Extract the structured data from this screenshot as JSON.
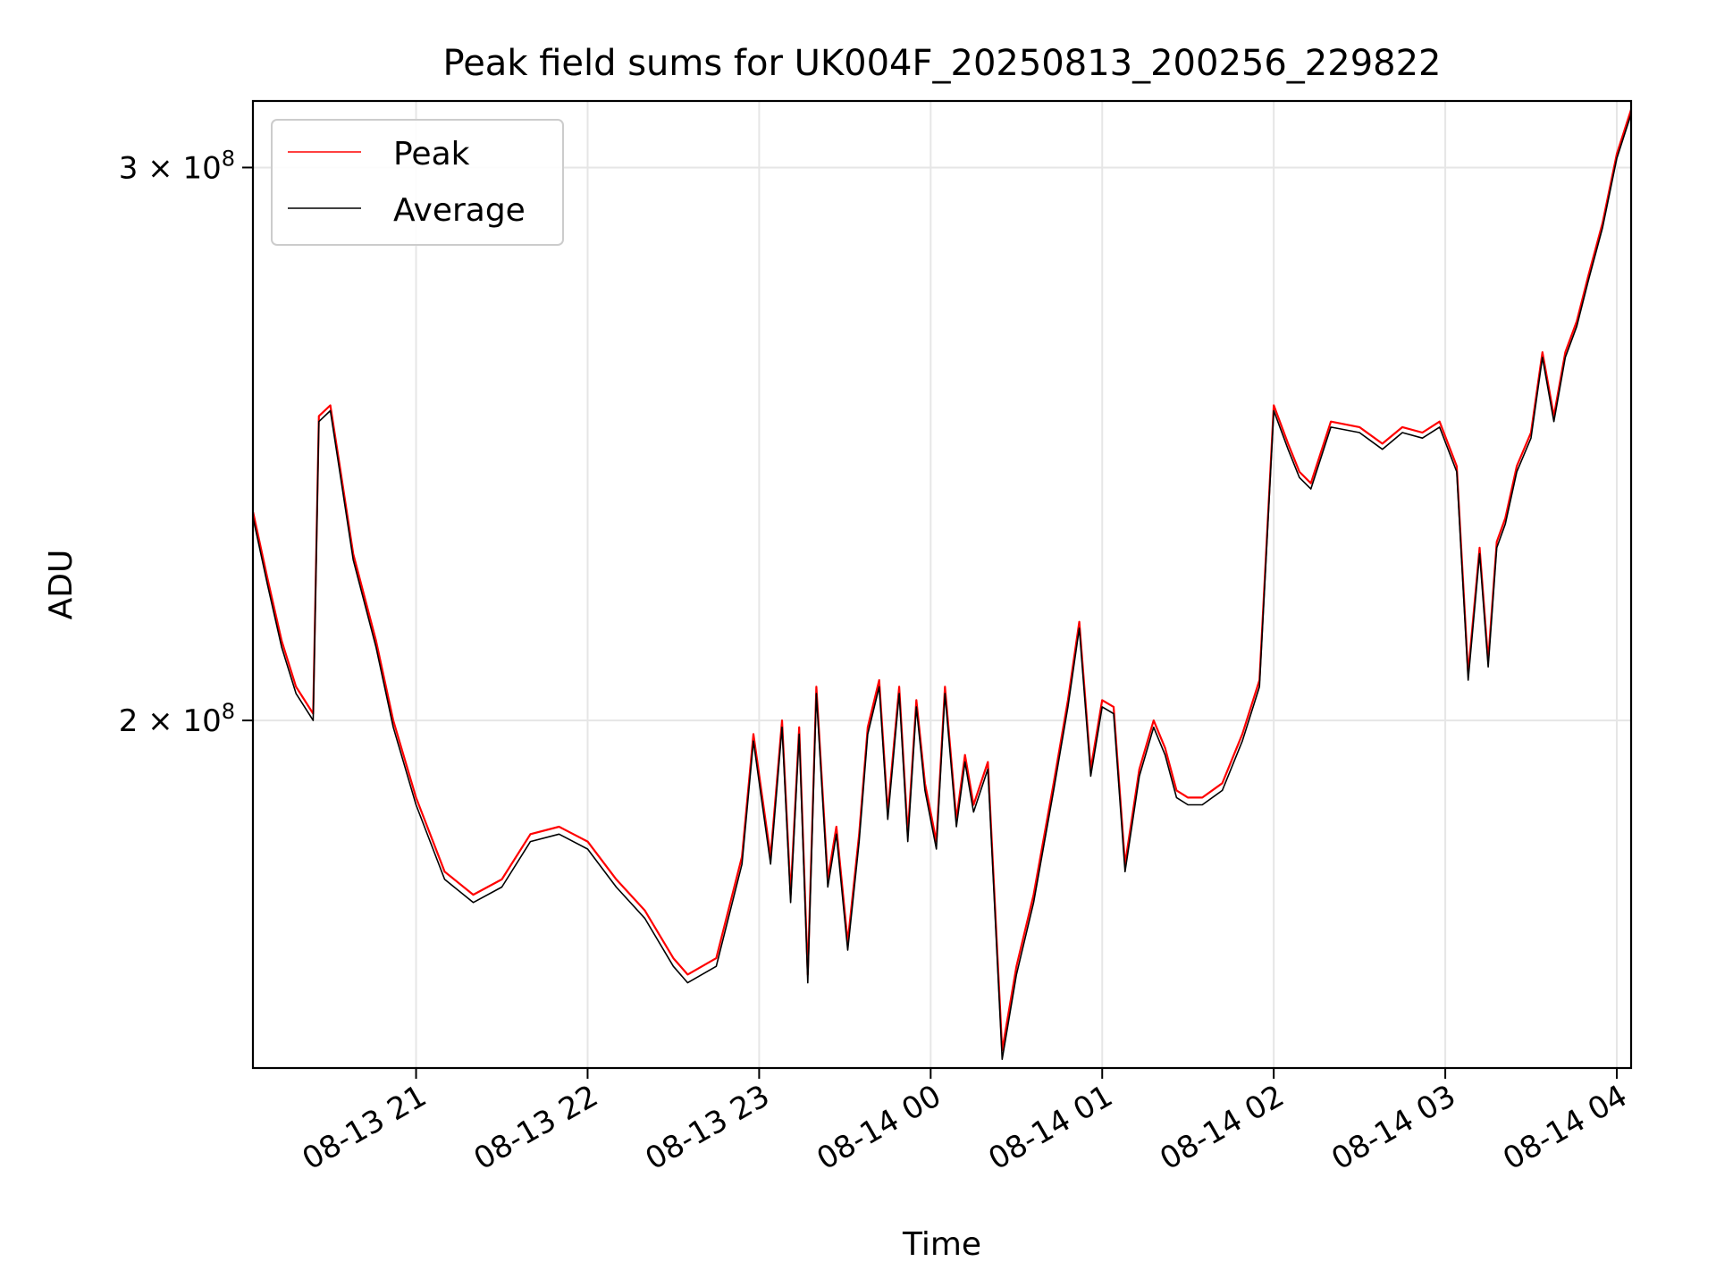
{
  "chart_data": {
    "type": "line",
    "title": "Peak field sums for UK004F_20250813_200256_229822",
    "xlabel": "Time",
    "ylabel": "ADU",
    "xlim": [
      "2025-08-13 20:02:56",
      "2025-08-14 04:05:00"
    ],
    "ylim": [
      155000000,
      315000000
    ],
    "yscale": "log",
    "grid": true,
    "legend_position": "top-left",
    "x_ticks": [
      {
        "value": "2025-08-13 21:00",
        "label": "08-13 21"
      },
      {
        "value": "2025-08-13 22:00",
        "label": "08-13 22"
      },
      {
        "value": "2025-08-13 23:00",
        "label": "08-13 23"
      },
      {
        "value": "2025-08-14 00:00",
        "label": "08-14 00"
      },
      {
        "value": "2025-08-14 01:00",
        "label": "08-14 01"
      },
      {
        "value": "2025-08-14 02:00",
        "label": "08-14 02"
      },
      {
        "value": "2025-08-14 03:00",
        "label": "08-14 03"
      },
      {
        "value": "2025-08-14 04:00",
        "label": "08-14 04"
      }
    ],
    "y_ticks": [
      {
        "value": 200000000,
        "mantissa": "2",
        "base": "10",
        "exponent": "8"
      },
      {
        "value": 300000000,
        "mantissa": "3",
        "base": "10",
        "exponent": "8"
      }
    ],
    "x": [
      "2025-08-13 20:03",
      "2025-08-13 20:08",
      "2025-08-13 20:13",
      "2025-08-13 20:18",
      "2025-08-13 20:24",
      "2025-08-13 20:26",
      "2025-08-13 20:30",
      "2025-08-13 20:33",
      "2025-08-13 20:38",
      "2025-08-13 20:46",
      "2025-08-13 20:52",
      "2025-08-13 21:00",
      "2025-08-13 21:10",
      "2025-08-13 21:20",
      "2025-08-13 21:30",
      "2025-08-13 21:40",
      "2025-08-13 21:50",
      "2025-08-13 22:00",
      "2025-08-13 22:10",
      "2025-08-13 22:20",
      "2025-08-13 22:30",
      "2025-08-13 22:35",
      "2025-08-13 22:45",
      "2025-08-13 22:54",
      "2025-08-13 22:58",
      "2025-08-13 23:04",
      "2025-08-13 23:08",
      "2025-08-13 23:11",
      "2025-08-13 23:14",
      "2025-08-13 23:17",
      "2025-08-13 23:20",
      "2025-08-13 23:24",
      "2025-08-13 23:27",
      "2025-08-13 23:31",
      "2025-08-13 23:35",
      "2025-08-13 23:38",
      "2025-08-13 23:42",
      "2025-08-13 23:45",
      "2025-08-13 23:49",
      "2025-08-13 23:52",
      "2025-08-13 23:55",
      "2025-08-13 23:58",
      "2025-08-14 00:02",
      "2025-08-14 00:05",
      "2025-08-14 00:09",
      "2025-08-14 00:12",
      "2025-08-14 00:15",
      "2025-08-14 00:20",
      "2025-08-14 00:25",
      "2025-08-14 00:30",
      "2025-08-14 00:36",
      "2025-08-14 00:43",
      "2025-08-14 00:48",
      "2025-08-14 00:52",
      "2025-08-14 00:56",
      "2025-08-14 01:00",
      "2025-08-14 01:04",
      "2025-08-14 01:08",
      "2025-08-14 01:13",
      "2025-08-14 01:18",
      "2025-08-14 01:22",
      "2025-08-14 01:26",
      "2025-08-14 01:30",
      "2025-08-14 01:35",
      "2025-08-14 01:42",
      "2025-08-14 01:49",
      "2025-08-14 01:55",
      "2025-08-14 02:00",
      "2025-08-14 02:05",
      "2025-08-14 02:09",
      "2025-08-14 02:13",
      "2025-08-14 02:20",
      "2025-08-14 02:30",
      "2025-08-14 02:38",
      "2025-08-14 02:45",
      "2025-08-14 02:52",
      "2025-08-14 02:58",
      "2025-08-14 03:04",
      "2025-08-14 03:08",
      "2025-08-14 03:12",
      "2025-08-14 03:15",
      "2025-08-14 03:18",
      "2025-08-14 03:21",
      "2025-08-14 03:25",
      "2025-08-14 03:30",
      "2025-08-14 03:34",
      "2025-08-14 03:38",
      "2025-08-14 03:42",
      "2025-08-14 03:46",
      "2025-08-14 03:50",
      "2025-08-14 03:55",
      "2025-08-14 04:00",
      "2025-08-14 04:05"
    ],
    "series": [
      {
        "name": "Peak",
        "color": "#ff0000",
        "values": [
          233000000,
          222000000,
          212000000,
          205000000,
          201000000,
          250000000,
          252000000,
          242000000,
          226000000,
          212000000,
          200000000,
          189000000,
          179000000,
          176000000,
          178000000,
          184000000,
          185000000,
          183000000,
          178000000,
          174000000,
          168000000,
          166000000,
          168000000,
          181000000,
          198000000,
          181000000,
          200000000,
          176000000,
          199000000,
          166000000,
          205000000,
          178000000,
          185000000,
          170000000,
          184000000,
          199000000,
          206000000,
          187000000,
          205000000,
          184000000,
          203000000,
          191000000,
          183000000,
          205000000,
          186000000,
          195000000,
          188000000,
          194000000,
          157000000,
          167000000,
          176000000,
          191000000,
          203000000,
          215000000,
          193000000,
          203000000,
          202000000,
          180000000,
          193000000,
          200000000,
          196000000,
          190000000,
          189000000,
          189000000,
          191000000,
          198000000,
          206000000,
          252000000,
          245000000,
          240000000,
          238000000,
          249000000,
          248000000,
          245000000,
          248000000,
          247000000,
          249000000,
          241000000,
          207000000,
          227000000,
          209000000,
          228000000,
          232000000,
          241000000,
          247000000,
          262000000,
          250000000,
          262000000,
          268000000,
          277000000,
          288000000,
          303000000,
          313000000
        ]
      },
      {
        "name": "Average",
        "color": "#000000",
        "values": [
          232000000,
          221000000,
          211000000,
          204000000,
          200000000,
          249000000,
          251000000,
          241000000,
          225000000,
          211000000,
          199000000,
          188000000,
          178000000,
          175000000,
          177000000,
          183000000,
          184000000,
          182000000,
          177000000,
          173000000,
          167000000,
          165000000,
          167000000,
          180000000,
          197000000,
          180000000,
          199000000,
          175000000,
          198000000,
          165000000,
          204000000,
          177000000,
          184000000,
          169000000,
          183000000,
          198000000,
          205000000,
          186000000,
          204000000,
          183000000,
          202000000,
          190000000,
          182000000,
          204000000,
          185000000,
          194000000,
          187000000,
          193000000,
          156000000,
          166000000,
          175000000,
          190000000,
          202000000,
          214000000,
          192000000,
          202000000,
          201000000,
          179000000,
          192000000,
          199000000,
          195000000,
          189000000,
          188000000,
          188000000,
          190000000,
          197000000,
          205000000,
          251000000,
          244000000,
          239000000,
          237000000,
          248000000,
          247000000,
          244000000,
          247000000,
          246000000,
          248000000,
          240000000,
          206000000,
          226000000,
          208000000,
          227000000,
          231000000,
          240000000,
          246000000,
          261000000,
          249000000,
          261000000,
          267000000,
          276000000,
          287000000,
          302000000,
          312000000
        ]
      }
    ]
  }
}
